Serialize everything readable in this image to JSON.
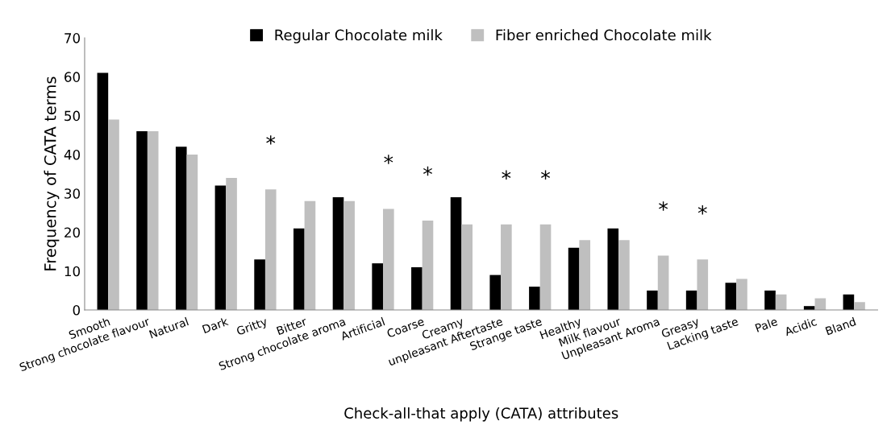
{
  "chart_data": {
    "type": "bar",
    "xlabel": "Check-all-that apply (CATA) attributes",
    "ylabel": "Frequency of CATA terms",
    "categories": [
      "Smooth",
      "Strong chocolate flavour",
      "Natural",
      "Dark",
      "Gritty",
      "Bitter",
      "Strong chocolate aroma",
      "Artificial",
      "Coarse",
      "Creamy",
      "unpleasant Aftertaste",
      "Strange taste",
      "Healthy",
      "Milk flavour",
      "Unpleasant Aroma",
      "Greasy",
      "Lacking taste",
      "Pale",
      "Acidic",
      "Bland"
    ],
    "series": [
      {
        "name": "Regular Chocolate milk",
        "color": "#000000",
        "values": [
          61,
          46,
          42,
          32,
          13,
          21,
          29,
          12,
          11,
          29,
          9,
          6,
          16,
          21,
          5,
          5,
          7,
          5,
          1,
          4
        ]
      },
      {
        "name": "Fiber enriched Chocolate milk",
        "color": "#bfbfbf",
        "values": [
          49,
          46,
          40,
          34,
          31,
          28,
          28,
          26,
          23,
          22,
          22,
          22,
          18,
          18,
          14,
          13,
          8,
          4,
          3,
          2
        ]
      }
    ],
    "annotations": [
      {
        "text": "*",
        "x": "Gritty",
        "y": 31
      },
      {
        "text": "*",
        "x": "Artificial",
        "y": 26
      },
      {
        "text": "*",
        "x": "Coarse",
        "y": 23
      },
      {
        "text": "*",
        "x": "unpleasant Aftertaste",
        "y": 22
      },
      {
        "text": "*",
        "x": "Strange taste",
        "y": 22
      },
      {
        "text": "*",
        "x": "Unpleasant Aroma",
        "y": 14
      },
      {
        "text": "*",
        "x": "Greasy",
        "y": 13
      }
    ],
    "ylim": [
      0,
      70
    ],
    "yticks": [
      0,
      10,
      20,
      30,
      40,
      50,
      60,
      70
    ],
    "grid": false,
    "legend": "top"
  }
}
